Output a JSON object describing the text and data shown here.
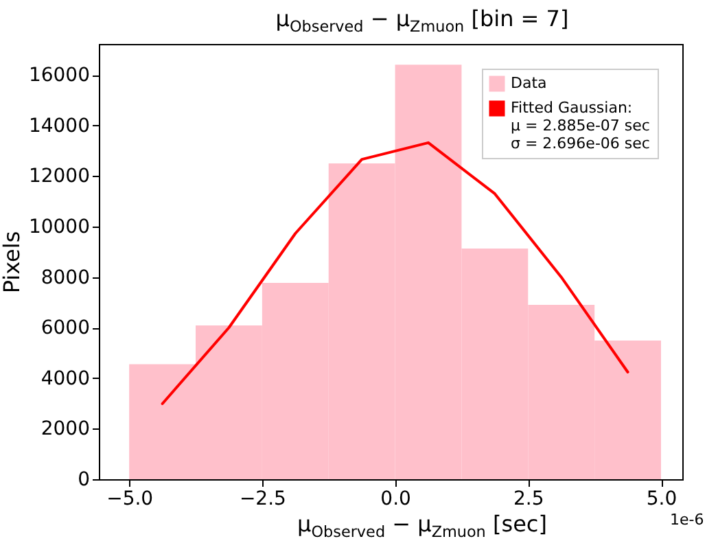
{
  "chart_data": {
    "type": "histogram",
    "title": "μ$_{Observed}$ − μ$_{Zmuon}$ [bin = 7]",
    "xlabel": "μ$_{Observed}$ − μ$_{Zmuon}$ [sec]",
    "ylabel": "Pixels",
    "annotations": [
      "1e-6"
    ],
    "bins": [
      -5.0,
      -3.75,
      -2.5,
      -1.25,
      0.0,
      1.25,
      2.5,
      3.75,
      5.0
    ],
    "series": [
      {
        "name": "Data",
        "color": "#ffc0cb",
        "values": [
          4550,
          6090,
          7770,
          12500,
          16410,
          9130,
          6900,
          5490
        ]
      },
      {
        "name": "Fitted Gaussian:\n μ = 2.885e-07 sec\n σ = 2.696e-06 sec",
        "type": "line",
        "color": "#ff0000",
        "x": [
          -4.375,
          -3.125,
          -1.875,
          -0.625,
          0.625,
          1.875,
          3.125,
          4.375
        ],
        "values": [
          2990,
          6000,
          9730,
          12660,
          13320,
          11300,
          8000,
          4240
        ]
      }
    ],
    "xlim": [
      -5.57,
      5.4
    ],
    "xticks": [
      {
        "value": -5,
        "label": "−5.0"
      },
      {
        "value": -2.5,
        "label": "−2.5"
      },
      {
        "value": 0,
        "label": "0.0"
      },
      {
        "value": 2.5,
        "label": "2.5"
      },
      {
        "value": 5,
        "label": "5.0"
      }
    ],
    "ylim": [
      0,
      17230
    ],
    "yticks": [
      0,
      2000,
      4000,
      6000,
      8000,
      10000,
      12000,
      14000,
      16000
    ],
    "grid": false,
    "legend": "top right"
  }
}
